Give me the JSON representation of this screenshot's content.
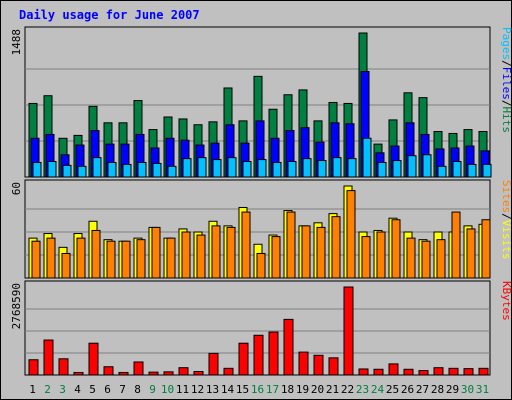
{
  "chart_data": {
    "type": "bar",
    "title": "Daily usage for June 2007",
    "days": [
      "1",
      "2",
      "3",
      "4",
      "5",
      "6",
      "7",
      "8",
      "9",
      "10",
      "11",
      "12",
      "13",
      "14",
      "15",
      "16",
      "17",
      "18",
      "19",
      "20",
      "21",
      "22",
      "23",
      "24",
      "25",
      "26",
      "27",
      "28",
      "29",
      "30",
      "31"
    ],
    "weekend_days": [
      "2",
      "3",
      "9",
      "10",
      "16",
      "17",
      "23",
      "24",
      "30",
      "31"
    ],
    "panels": [
      {
        "name": "hits-files-pages",
        "max_label": "1488",
        "ymax": 1488,
        "legend": [
          {
            "text": "Pages",
            "color": "#00c0ff"
          },
          {
            "text": "/",
            "color": "#000000"
          },
          {
            "text": "Files",
            "color": "#0000ff"
          },
          {
            "text": "/",
            "color": "#000000"
          },
          {
            "text": "Hits",
            "color": "#008040"
          }
        ],
        "series": [
          {
            "name": "Hits",
            "color": "#008040",
            "values": [
              760,
              840,
              400,
              430,
              730,
              560,
              560,
              790,
              490,
              620,
              600,
              540,
              570,
              920,
              580,
              1040,
              700,
              850,
              900,
              580,
              770,
              760,
              1488,
              340,
              590,
              870,
              820,
              470,
              450,
              490,
              470
            ]
          },
          {
            "name": "Files",
            "color": "#0000ff",
            "values": [
              400,
              440,
              230,
              330,
              480,
              340,
              340,
              440,
              300,
              400,
              380,
              330,
              350,
              540,
              350,
              580,
              400,
              480,
              510,
              360,
              560,
              550,
              1090,
              250,
              320,
              560,
              440,
              290,
              300,
              320,
              270
            ]
          },
          {
            "name": "Pages",
            "color": "#00c0ff",
            "values": [
              150,
              160,
              120,
              110,
              200,
              150,
              130,
              150,
              140,
              110,
              190,
              200,
              180,
              200,
              160,
              180,
              150,
              160,
              190,
              170,
              200,
              190,
              400,
              150,
              170,
              220,
              230,
              110,
              160,
              130,
              130
            ]
          }
        ]
      },
      {
        "name": "visits-sites",
        "max_label": "60",
        "ymax": 60,
        "legend": [
          {
            "text": "Sites",
            "color": "#ff8000"
          },
          {
            "text": "/",
            "color": "#000000"
          },
          {
            "text": "Visits",
            "color": "#ffff00"
          }
        ],
        "series": [
          {
            "name": "Visits",
            "color": "#ffff00",
            "values": [
              26,
              29,
              20,
              29,
              37,
              25,
              24,
              26,
              33,
              26,
              32,
              30,
              37,
              34,
              46,
              22,
              28,
              44,
              34,
              36,
              42,
              60,
              30,
              31,
              39,
              30,
              25,
              30,
              30,
              34,
              35
            ]
          },
          {
            "name": "Sites",
            "color": "#ff8000",
            "values": [
              24,
              26,
              16,
              26,
              31,
              24,
              24,
              25,
              33,
              26,
              30,
              28,
              34,
              33,
              43,
              16,
              27,
              43,
              34,
              33,
              40,
              57,
              27,
              30,
              38,
              26,
              24,
              25,
              43,
              32,
              38
            ]
          }
        ]
      },
      {
        "name": "kbytes",
        "max_label": "2768590",
        "ymax": 2768590,
        "legend": [
          {
            "text": "KBytes",
            "color": "#ff0000"
          }
        ],
        "series": [
          {
            "name": "KBytes",
            "color": "#ff0000",
            "values": [
              480000,
              1100000,
              510000,
              80000,
              1000000,
              260000,
              80000,
              410000,
              90000,
              100000,
              230000,
              110000,
              680000,
              210000,
              1000000,
              1250000,
              1350000,
              1750000,
              720000,
              620000,
              540000,
              2768590,
              190000,
              180000,
              350000,
              180000,
              140000,
              230000,
              210000,
              200000,
              210000
            ]
          }
        ]
      }
    ]
  }
}
